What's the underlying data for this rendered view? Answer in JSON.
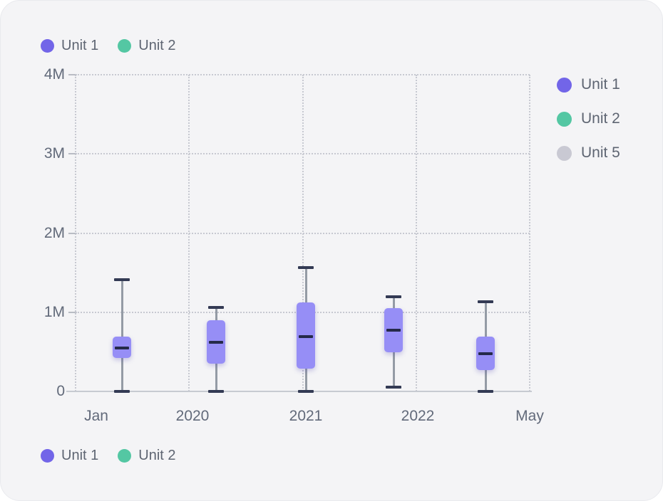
{
  "colors": {
    "card_background": "#f4f4f6",
    "unit1": "#7265e8",
    "unit2": "#54c7a3",
    "unit5": "#c9c9d3",
    "box_fill": "#968ef6",
    "median_line": "#252a4a",
    "whisker_cap": "#333a54",
    "whisker_line": "#949ba5",
    "grid_line": "#c7c9d1",
    "axis_line": "#c7cad1",
    "label_text": "#626a7a",
    "legend_text": "#5e6572"
  },
  "legend_top": {
    "items": [
      {
        "label": "Unit 1",
        "color": "#7265e8"
      },
      {
        "label": "Unit 2",
        "color": "#54c7a3"
      }
    ]
  },
  "legend_right": {
    "items": [
      {
        "label": "Unit 1",
        "color": "#7265e8"
      },
      {
        "label": "Unit 2",
        "color": "#54c7a3"
      },
      {
        "label": "Unit 5",
        "color": "#c9c9d3"
      }
    ]
  },
  "legend_bottom": {
    "items": [
      {
        "label": "Unit 1",
        "color": "#7265e8"
      },
      {
        "label": "Unit 2",
        "color": "#54c7a3"
      }
    ]
  },
  "chart_data": {
    "type": "boxplot",
    "series_name": "Unit 1",
    "unit": "millions",
    "categories": [
      "Jan",
      "2020",
      "2021",
      "2022",
      "May"
    ],
    "y_ticks": [
      {
        "label": "0",
        "value": 0
      },
      {
        "label": "1M",
        "value": 1
      },
      {
        "label": "2M",
        "value": 2
      },
      {
        "label": "3M",
        "value": 3
      },
      {
        "label": "4M",
        "value": 4
      }
    ],
    "ylim": [
      0,
      4
    ],
    "grid": "dotted, horizontal and vertical",
    "legend_positions": [
      "top-left",
      "right",
      "bottom-left"
    ],
    "boxes": [
      {
        "category": "Jan",
        "min": 0,
        "q1": 0.42,
        "median": 0.55,
        "q3": 0.69,
        "max": 1.41
      },
      {
        "category": "2020",
        "min": 0,
        "q1": 0.35,
        "median": 0.62,
        "q3": 0.9,
        "max": 1.06
      },
      {
        "category": "2021",
        "min": 0,
        "q1": 0.29,
        "median": 0.69,
        "q3": 1.12,
        "max": 1.56
      },
      {
        "category": "2022",
        "min": 0.05,
        "q1": 0.49,
        "median": 0.77,
        "q3": 1.05,
        "max": 1.2
      },
      {
        "category": "May",
        "min": 0,
        "q1": 0.27,
        "median": 0.48,
        "q3": 0.69,
        "max": 1.13
      }
    ]
  }
}
